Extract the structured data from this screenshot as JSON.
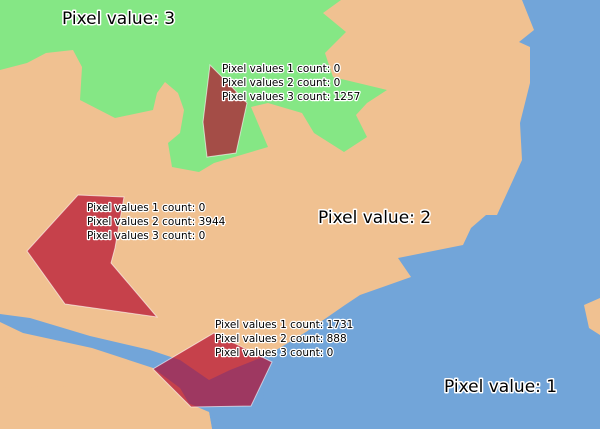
{
  "colors": {
    "pixel_value_1": "#72a5d9",
    "pixel_value_2": "#f0c191",
    "pixel_value_3": "#85e785",
    "polygon_fill": "#b2072b",
    "polygon_opacity": 0.69,
    "polygon_edge": "#ffffff"
  },
  "region_labels": [
    {
      "value": 3,
      "text": "Pixel value: 3"
    },
    {
      "value": 2,
      "text": "Pixel value: 2"
    },
    {
      "value": 1,
      "text": "Pixel value: 1"
    }
  ],
  "polygons": [
    {
      "counts": {
        "1": 0,
        "2": 0,
        "3": 1257
      },
      "lines": [
        "Pixel values 1 count: 0",
        "Pixel values 2 count: 0",
        "Pixel values 3 count: 1257"
      ]
    },
    {
      "counts": {
        "1": 0,
        "2": 3944,
        "3": 0
      },
      "lines": [
        "Pixel values 1 count: 0",
        "Pixel values 2 count: 3944",
        "Pixel values 3 count: 0"
      ]
    },
    {
      "counts": {
        "1": 1731,
        "2": 888,
        "3": 0
      },
      "lines": [
        "Pixel values 1 count: 1731",
        "Pixel values 2 count: 888",
        "Pixel values 3 count: 0"
      ]
    }
  ]
}
